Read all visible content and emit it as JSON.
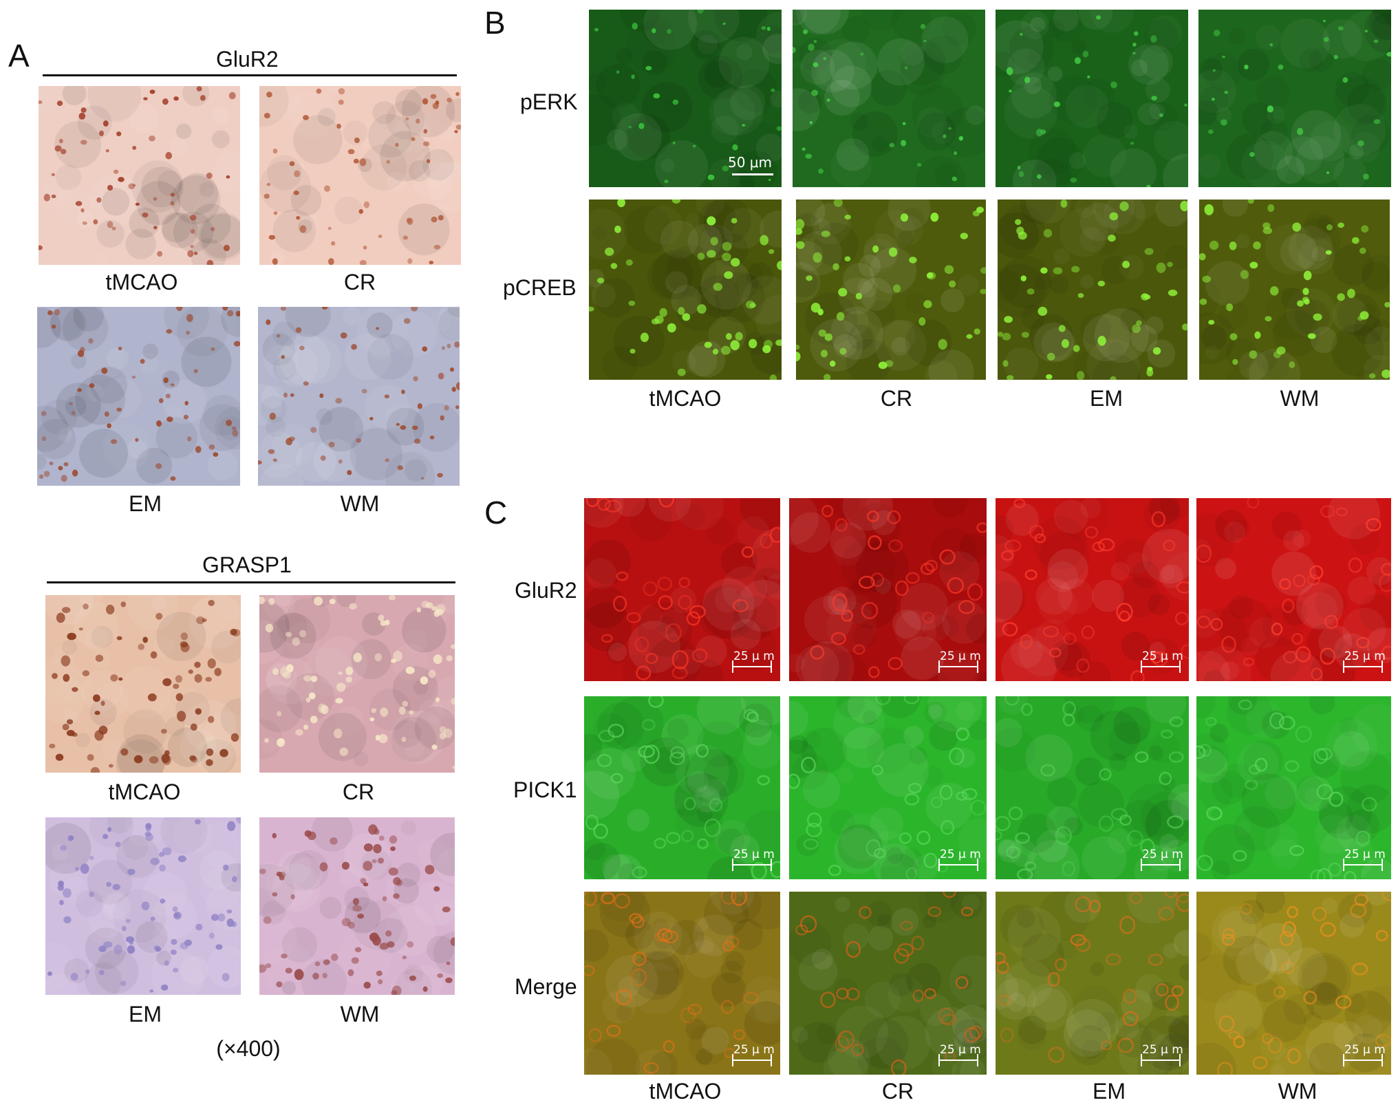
{
  "panel_labels": {
    "a": "A",
    "b": "B",
    "c": "C"
  },
  "panel_a": {
    "glur2_title": "GluR2",
    "grasp1_title": "GRASP1",
    "glur2_captions": [
      "tMCAO",
      "CR",
      "EM",
      "WM"
    ],
    "grasp1_captions": [
      "tMCAO",
      "CR",
      "EM",
      "WM"
    ],
    "magnification": "(×400)",
    "colors": {
      "glur2_pink": "#efcfc4",
      "glur2_blue": "#b0b4cc",
      "grasp1_warm": "#e8c0a8",
      "grasp1_purple": "#d0bedf",
      "nucleus_brown": "#a4402a"
    }
  },
  "panel_b": {
    "rows": [
      "pERK",
      "pCREB"
    ],
    "columns": [
      "tMCAO",
      "CR",
      "EM",
      "WM"
    ],
    "scale_bar": "50 μm",
    "colors": {
      "perk_green": "#1c5e1c",
      "pcreb_olive": "#4e5a0a",
      "nucleus_green": "#8ef23a"
    }
  },
  "panel_c": {
    "rows": [
      "GluR2",
      "PICK1",
      "Merge"
    ],
    "columns": [
      "tMCAO",
      "CR",
      "EM",
      "WM"
    ],
    "scale_bar": "25 μ m",
    "colors": {
      "glur2_red": "#c81010",
      "pick1_green": "#2bb32b",
      "merge_olive": "#8c7a18"
    }
  }
}
